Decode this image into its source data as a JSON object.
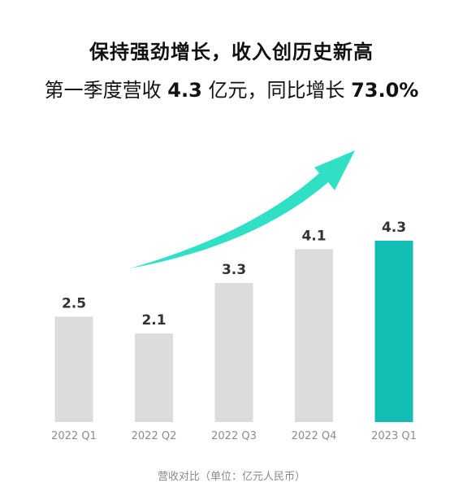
{
  "title": "保持强劲增长，收入创历史新高",
  "subtitle": {
    "prefix": "第一季度营收 ",
    "revenue": "4.3",
    "mid": " 亿元，同比增长 ",
    "growth": "73.0%"
  },
  "note": "营收对比（单位：亿元人民币）",
  "colors": {
    "bar_default": "#dcdcdc",
    "bar_highlight": "#14bdb4",
    "arrow": "#2fe0c4",
    "label": "#333333",
    "tick": "#8c8c8c"
  },
  "chart_data": {
    "type": "bar",
    "categories": [
      "2022 Q1",
      "2022 Q2",
      "2022 Q3",
      "2022 Q4",
      "2023 Q1"
    ],
    "values": [
      2.5,
      2.1,
      3.3,
      4.1,
      4.3
    ],
    "value_labels": [
      "2.5",
      "2.1",
      "3.3",
      "4.1",
      "4.3"
    ],
    "highlight_index": 4,
    "title": "",
    "xlabel": "",
    "ylabel": "",
    "ylim": [
      0,
      4.3
    ],
    "grid": false,
    "legend": "none"
  }
}
